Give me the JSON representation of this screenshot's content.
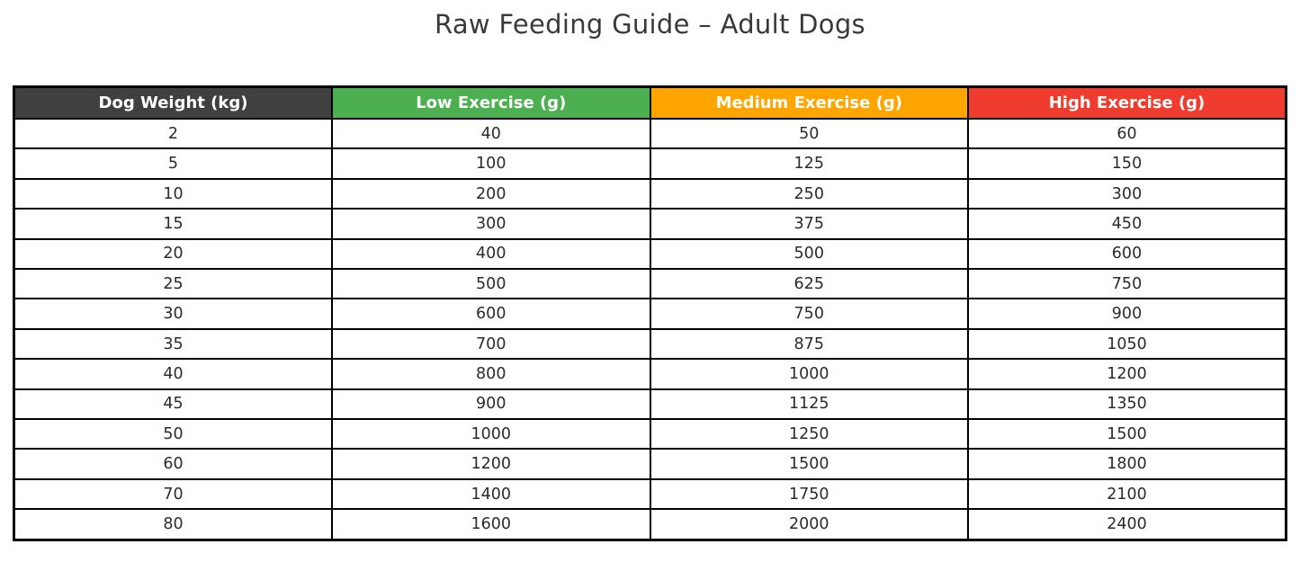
{
  "title": "Raw Feeding Guide – Adult Dogs",
  "chart_data": {
    "type": "table",
    "title": "Raw Feeding Guide – Adult Dogs",
    "columns": [
      {
        "label": "Dog Weight (kg)",
        "header_bg": "#404040",
        "header_text": "#ffffff"
      },
      {
        "label": "Low Exercise (g)",
        "header_bg": "#4caf50",
        "header_text": "#ffffff"
      },
      {
        "label": "Medium Exercise (g)",
        "header_bg": "#ffa500",
        "header_text": "#ffffff"
      },
      {
        "label": "High Exercise (g)",
        "header_bg": "#f03c2e",
        "header_text": "#ffffff"
      }
    ],
    "rows": [
      [
        "2",
        "40",
        "50",
        "60"
      ],
      [
        "5",
        "100",
        "125",
        "150"
      ],
      [
        "10",
        "200",
        "250",
        "300"
      ],
      [
        "15",
        "300",
        "375",
        "450"
      ],
      [
        "20",
        "400",
        "500",
        "600"
      ],
      [
        "25",
        "500",
        "625",
        "750"
      ],
      [
        "30",
        "600",
        "750",
        "900"
      ],
      [
        "35",
        "700",
        "875",
        "1050"
      ],
      [
        "40",
        "800",
        "1000",
        "1200"
      ],
      [
        "45",
        "900",
        "1125",
        "1350"
      ],
      [
        "50",
        "1000",
        "1250",
        "1500"
      ],
      [
        "60",
        "1200",
        "1500",
        "1800"
      ],
      [
        "70",
        "1400",
        "1750",
        "2100"
      ],
      [
        "80",
        "1600",
        "2000",
        "2400"
      ]
    ],
    "layout": {
      "grid": true,
      "border_color": "#000000",
      "background": "#ffffff"
    }
  }
}
